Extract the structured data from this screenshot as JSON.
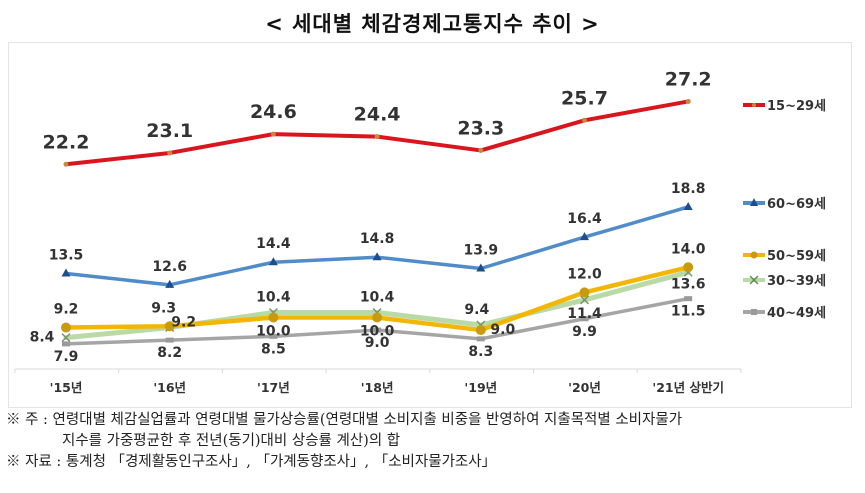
{
  "chart_data": {
    "type": "line",
    "title": "< 세대별 체감경제고통지수 추이 >",
    "xlabel": "",
    "ylabel": "",
    "categories": [
      "'15년",
      "'16년",
      "'17년",
      "'18년",
      "'19년",
      "'20년",
      "'21년 상반기"
    ],
    "ylim": [
      5.9,
      30.5
    ],
    "grid": false,
    "legend_position": "right",
    "series": [
      {
        "name": "15~29세",
        "color": "#d9161e",
        "marker": "circle",
        "values": [
          22.2,
          23.1,
          24.6,
          24.4,
          23.3,
          25.7,
          27.2
        ],
        "labels": [
          "22.2",
          "23.1",
          "24.6",
          "24.4",
          "23.3",
          "25.7",
          "27.2"
        ]
      },
      {
        "name": "60~69세",
        "color": "#4f8cc9",
        "marker": "triangle",
        "values": [
          13.5,
          12.6,
          14.4,
          14.8,
          13.9,
          16.4,
          18.8
        ],
        "labels": [
          "13.5",
          "12.6",
          "14.4",
          "14.8",
          "13.9",
          "16.4",
          "18.8"
        ]
      },
      {
        "name": "50~59세",
        "color": "#f2b705",
        "marker": "circle",
        "values": [
          9.2,
          9.3,
          10.0,
          10.0,
          9.0,
          12.0,
          14.0
        ],
        "labels": [
          "9.2",
          "9.3",
          "10.0",
          "10.0",
          "9.0",
          "12.0",
          "14.0"
        ]
      },
      {
        "name": "30~39세",
        "color": "#b9d9a6",
        "marker": "x",
        "values": [
          8.4,
          9.2,
          10.4,
          10.4,
          9.4,
          11.4,
          13.6
        ],
        "labels": [
          "8.4",
          "9.2",
          "10.4",
          "10.4",
          "9.4",
          "11.4",
          "13.6"
        ]
      },
      {
        "name": "40~49세",
        "color": "#a5a5a5",
        "marker": "dash",
        "values": [
          7.9,
          8.2,
          8.5,
          9.0,
          8.3,
          9.9,
          11.5
        ],
        "labels": [
          "7.9",
          "8.2",
          "8.5",
          "9.0",
          "8.3",
          "9.9",
          "11.5"
        ]
      }
    ]
  },
  "notes": {
    "line1": "※ 주 : 연령대별 체감실업률과 연령대별 물가상승률(연령대별 소비지출 비중을 반영하여 지출목적별 소비자물가",
    "line2": "지수를 가중평균한 후 전년(동기)대비 상승률 계산)의 합",
    "line3": "※ 자료 : 통계청 「경제활동인구조사」, 「가계동향조사」, 「소비자물가조사」"
  }
}
